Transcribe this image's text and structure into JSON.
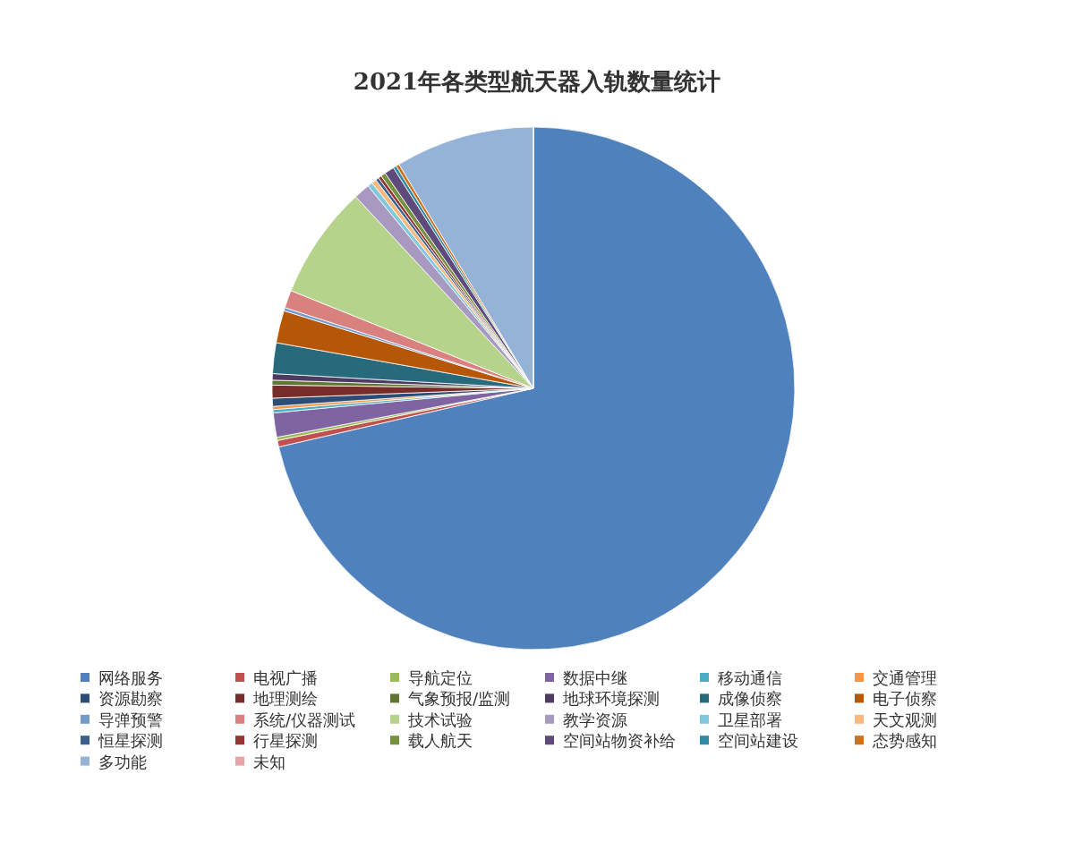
{
  "chart_data": {
    "type": "pie",
    "title": "2021年各类型航天器入轨数量统计",
    "categories": [
      "网络服务",
      "电视广播",
      "导航定位",
      "数据中继",
      "移动通信",
      "交通管理",
      "资源勘察",
      "地理测绘",
      "气象预报/监测",
      "地球环境探测",
      "成像侦察",
      "电子侦察",
      "导弹预警",
      "系统/仪器测试",
      "技术试验",
      "教学资源",
      "卫星部署",
      "天文观测",
      "恒星探测",
      "行星探测",
      "载人航天",
      "空间站物资补给",
      "空间站建设",
      "态势感知",
      "多功能",
      "未知"
    ],
    "values": [
      71.4,
      0.4,
      0.2,
      1.5,
      0.2,
      0.2,
      0.5,
      0.8,
      0.3,
      0.4,
      1.9,
      2.0,
      0.2,
      1.1,
      7.0,
      1.0,
      0.3,
      0.3,
      0.2,
      0.2,
      0.3,
      0.6,
      0.2,
      0.2,
      8.6,
      0
    ],
    "colors": [
      "#4f81bd",
      "#c0504d",
      "#9bbb59",
      "#8064a2",
      "#4bacc6",
      "#f79646",
      "#2c4d75",
      "#772c2a",
      "#5f7530",
      "#4d3b62",
      "#276a7c",
      "#b65708",
      "#729aca",
      "#d9817f",
      "#b6d38c",
      "#a899c0",
      "#7fc8dd",
      "#f9b87f",
      "#3a5f8f",
      "#933633",
      "#76913d",
      "#5f4b7b",
      "#318aa3",
      "#cd6f1b",
      "#95b3d7",
      "#e6a5a4"
    ],
    "legend": "bottom"
  }
}
